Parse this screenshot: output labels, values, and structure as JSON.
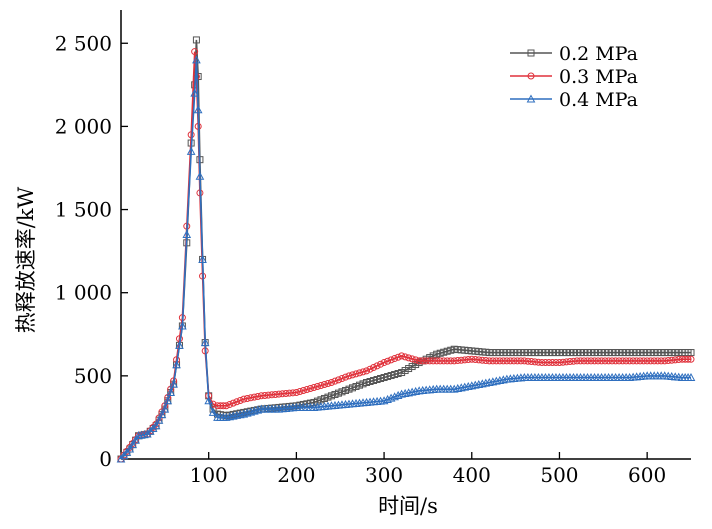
{
  "chart_data": {
    "type": "line",
    "title": "",
    "xlabel": "时间/s",
    "ylabel": "热释放速率/kW",
    "xlim": [
      0,
      650
    ],
    "ylim": [
      0,
      2700
    ],
    "x_ticks": [
      100,
      200,
      300,
      400,
      500,
      600
    ],
    "x_tick_labels": [
      "100",
      "200",
      "300",
      "400",
      "500",
      "600"
    ],
    "y_ticks": [
      0,
      500,
      1000,
      1500,
      2000,
      2500
    ],
    "y_tick_labels": [
      "0",
      "500",
      "1 000",
      "1 500",
      "2 000",
      "2 500"
    ],
    "grid": false,
    "legend_position": "top-right",
    "series": [
      {
        "name": "0.2 MPa",
        "color": "#555555",
        "marker": "square",
        "points": [
          [
            0,
            0
          ],
          [
            10,
            60
          ],
          [
            20,
            140
          ],
          [
            30,
            150
          ],
          [
            40,
            200
          ],
          [
            50,
            300
          ],
          [
            60,
            450
          ],
          [
            70,
            800
          ],
          [
            75,
            1300
          ],
          [
            80,
            1900
          ],
          [
            84,
            2250
          ],
          [
            86,
            2520
          ],
          [
            88,
            2300
          ],
          [
            90,
            1800
          ],
          [
            93,
            1200
          ],
          [
            96,
            700
          ],
          [
            100,
            380
          ],
          [
            105,
            300
          ],
          [
            110,
            270
          ],
          [
            120,
            260
          ],
          [
            140,
            280
          ],
          [
            160,
            300
          ],
          [
            180,
            310
          ],
          [
            200,
            320
          ],
          [
            220,
            340
          ],
          [
            240,
            380
          ],
          [
            260,
            420
          ],
          [
            280,
            460
          ],
          [
            300,
            490
          ],
          [
            320,
            520
          ],
          [
            340,
            580
          ],
          [
            360,
            630
          ],
          [
            380,
            660
          ],
          [
            400,
            650
          ],
          [
            420,
            640
          ],
          [
            440,
            640
          ],
          [
            460,
            640
          ],
          [
            480,
            640
          ],
          [
            500,
            640
          ],
          [
            520,
            640
          ],
          [
            540,
            640
          ],
          [
            560,
            640
          ],
          [
            580,
            640
          ],
          [
            600,
            640
          ],
          [
            620,
            640
          ],
          [
            640,
            640
          ],
          [
            650,
            640
          ]
        ]
      },
      {
        "name": "0.3 MPa",
        "color": "#e0313b",
        "marker": "circle",
        "points": [
          [
            0,
            0
          ],
          [
            10,
            70
          ],
          [
            20,
            140
          ],
          [
            30,
            150
          ],
          [
            40,
            210
          ],
          [
            50,
            320
          ],
          [
            60,
            470
          ],
          [
            70,
            850
          ],
          [
            75,
            1400
          ],
          [
            80,
            1950
          ],
          [
            84,
            2450
          ],
          [
            86,
            2300
          ],
          [
            88,
            2000
          ],
          [
            90,
            1600
          ],
          [
            93,
            1100
          ],
          [
            96,
            650
          ],
          [
            100,
            380
          ],
          [
            105,
            330
          ],
          [
            110,
            320
          ],
          [
            120,
            320
          ],
          [
            140,
            360
          ],
          [
            160,
            380
          ],
          [
            180,
            390
          ],
          [
            200,
            400
          ],
          [
            220,
            430
          ],
          [
            240,
            460
          ],
          [
            260,
            500
          ],
          [
            280,
            530
          ],
          [
            300,
            580
          ],
          [
            320,
            620
          ],
          [
            340,
            590
          ],
          [
            360,
            590
          ],
          [
            380,
            590
          ],
          [
            400,
            600
          ],
          [
            420,
            590
          ],
          [
            440,
            590
          ],
          [
            460,
            590
          ],
          [
            480,
            580
          ],
          [
            500,
            580
          ],
          [
            520,
            590
          ],
          [
            540,
            590
          ],
          [
            560,
            590
          ],
          [
            580,
            590
          ],
          [
            600,
            590
          ],
          [
            620,
            590
          ],
          [
            640,
            600
          ],
          [
            650,
            600
          ]
        ]
      },
      {
        "name": "0.4 MPa",
        "color": "#2f6fbf",
        "marker": "triangle",
        "points": [
          [
            0,
            0
          ],
          [
            10,
            60
          ],
          [
            20,
            140
          ],
          [
            30,
            150
          ],
          [
            40,
            200
          ],
          [
            50,
            300
          ],
          [
            60,
            450
          ],
          [
            70,
            800
          ],
          [
            75,
            1350
          ],
          [
            80,
            1850
          ],
          [
            84,
            2200
          ],
          [
            86,
            2400
          ],
          [
            88,
            2100
          ],
          [
            90,
            1700
          ],
          [
            93,
            1200
          ],
          [
            96,
            700
          ],
          [
            100,
            350
          ],
          [
            105,
            280
          ],
          [
            110,
            250
          ],
          [
            120,
            250
          ],
          [
            140,
            270
          ],
          [
            160,
            300
          ],
          [
            180,
            300
          ],
          [
            200,
            310
          ],
          [
            220,
            310
          ],
          [
            240,
            320
          ],
          [
            260,
            330
          ],
          [
            280,
            340
          ],
          [
            300,
            350
          ],
          [
            320,
            390
          ],
          [
            340,
            410
          ],
          [
            360,
            420
          ],
          [
            380,
            420
          ],
          [
            400,
            440
          ],
          [
            420,
            460
          ],
          [
            440,
            480
          ],
          [
            460,
            490
          ],
          [
            480,
            490
          ],
          [
            500,
            490
          ],
          [
            520,
            490
          ],
          [
            540,
            490
          ],
          [
            560,
            490
          ],
          [
            580,
            490
          ],
          [
            600,
            500
          ],
          [
            620,
            500
          ],
          [
            640,
            490
          ],
          [
            650,
            490
          ]
        ]
      }
    ]
  }
}
